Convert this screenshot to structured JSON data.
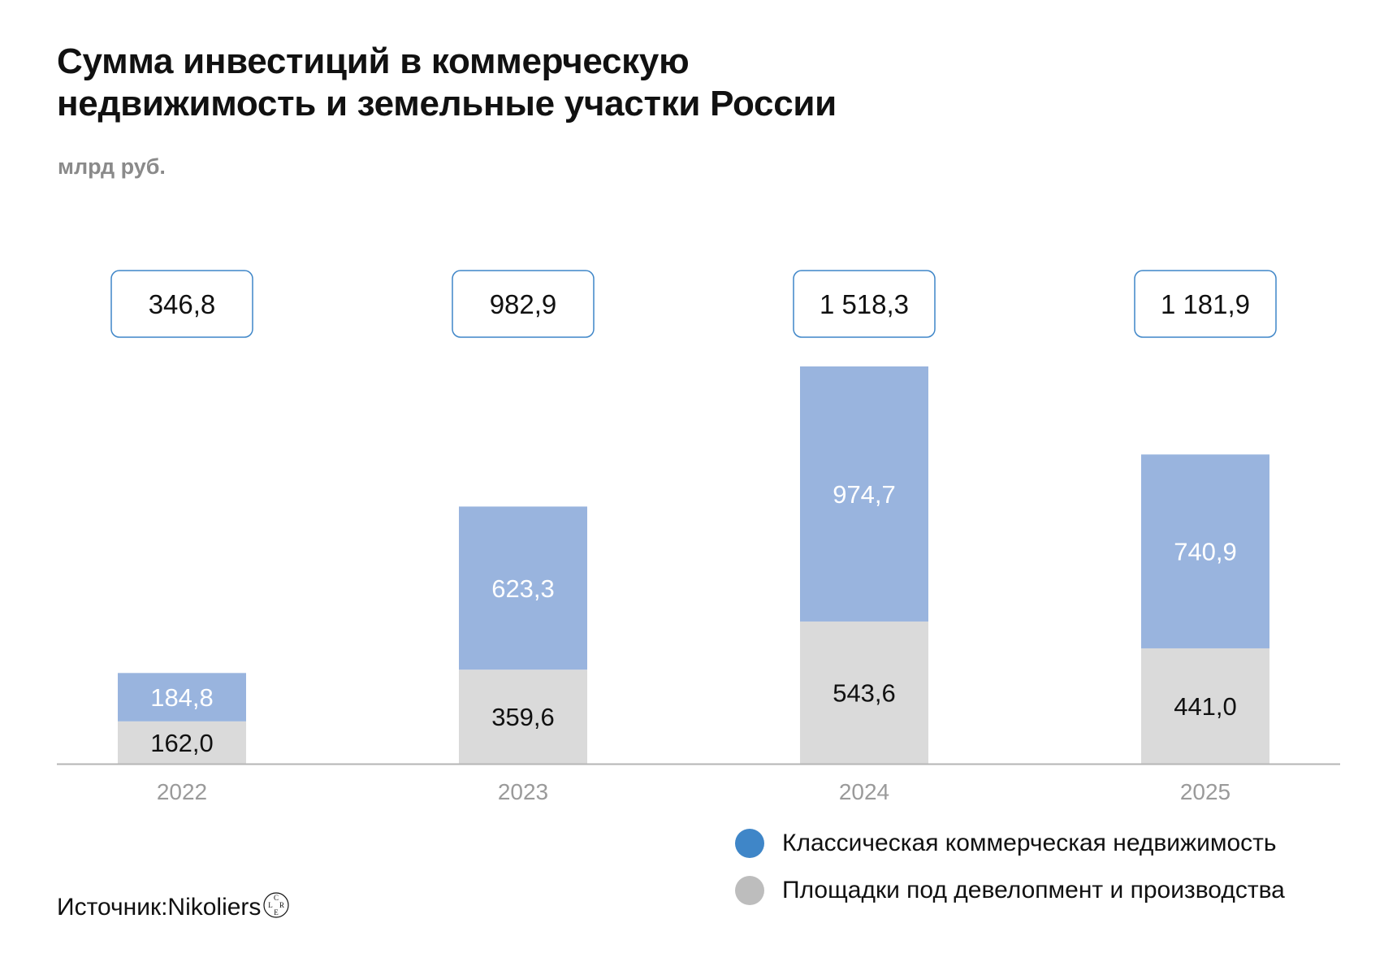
{
  "title_lines": [
    "Сумма инвестиций в коммерческую",
    "недвижимость и земельные участки России"
  ],
  "subtitle": "млрд руб.",
  "source": {
    "prefix": "Источник: ",
    "brand": "Nikoliers",
    "logo_letters": [
      "C",
      "L",
      "R",
      "E"
    ]
  },
  "legend": [
    {
      "label": "Классическая коммерческая недвижимость",
      "color": "#3f86c8"
    },
    {
      "label": "Площадки под девелопмент и производства",
      "color": "#bdbdbd"
    }
  ],
  "chart_data": {
    "type": "bar",
    "stacked": true,
    "categories": [
      "2022",
      "2023",
      "2024",
      "2025"
    ],
    "series": [
      {
        "name": "Площадки под девелопмент и производства",
        "color": "#dadada",
        "label_color": "#111111",
        "values": [
          162.0,
          359.6,
          543.6,
          441.0
        ],
        "labels": [
          "162,0",
          "359,6",
          "543,6",
          "441,0"
        ]
      },
      {
        "name": "Классическая коммерческая недвижимость",
        "color": "#99b4de",
        "label_color": "#ffffff",
        "values": [
          184.8,
          623.3,
          974.7,
          740.9
        ],
        "labels": [
          "184,8",
          "623,3",
          "974,7",
          "740,9"
        ]
      }
    ],
    "totals": [
      346.8,
      982.9,
      1518.3,
      1181.9
    ],
    "total_labels": [
      "346,8",
      "982,9",
      "1 518,3",
      "1 181,9"
    ],
    "ylim": [
      0,
      1518.3
    ],
    "grid": false,
    "legend_position": "bottom-right",
    "colors": {
      "axis": "#b5b5b5",
      "tick_label": "#9a9a9a",
      "total_box_border": "#3f86c8"
    }
  }
}
